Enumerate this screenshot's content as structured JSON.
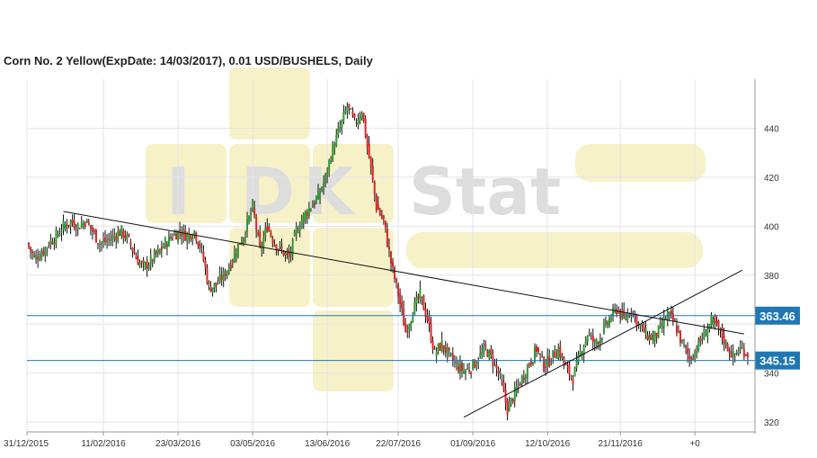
{
  "title": "Corn  No. 2 Yellow(ExpDate: 14/03/2017), 0.01 USD/BUSHELS, Daily",
  "watermark": {
    "text_left": "I",
    "text_mid": "DK",
    "text_right": "Stat",
    "color": "#f7f1c8",
    "letter_color": "#dddddd"
  },
  "colors": {
    "up": "#2e9c2e",
    "down": "#e02424",
    "level_line": "#1f77b4",
    "level_box": "#1f77b4",
    "trend": "#111111",
    "grid": "#e4e4e4"
  },
  "chart_data": {
    "type": "candlestick",
    "title": "Corn  No. 2 Yellow(ExpDate: 14/03/2017), 0.01 USD/BUSHELS, Daily",
    "x_tick_labels": [
      "31/12/2015",
      "11/02/2016",
      "23/03/2016",
      "03/05/2016",
      "13/06/2016",
      "22/07/2016",
      "01/09/2016",
      "12/10/2016",
      "21/11/2016",
      "+0"
    ],
    "x_tick_days": [
      0,
      42,
      83,
      124,
      165,
      204,
      245,
      286,
      326,
      367
    ],
    "y_ticks": [
      320,
      340,
      360,
      380,
      400,
      420,
      440
    ],
    "y_tick_labels": [
      "320",
      "340",
      "",
      "380",
      "400",
      "420",
      "440"
    ],
    "ylim": [
      316,
      460
    ],
    "xlim_days": [
      0,
      400
    ],
    "levels": [
      {
        "value": 363.46,
        "label": "363.46"
      },
      {
        "value": 345.15,
        "label": "345.15"
      }
    ],
    "trendlines": [
      {
        "from": {
          "day": 20,
          "value": 406
        },
        "to": {
          "day": 394,
          "value": 356
        }
      },
      {
        "from": {
          "day": 240,
          "value": 322
        },
        "to": {
          "day": 393,
          "value": 382
        }
      }
    ],
    "close_series": [
      {
        "day": 0,
        "close": 393
      },
      {
        "day": 4,
        "close": 387
      },
      {
        "day": 8,
        "close": 389
      },
      {
        "day": 12,
        "close": 393
      },
      {
        "day": 16,
        "close": 396
      },
      {
        "day": 20,
        "close": 400
      },
      {
        "day": 24,
        "close": 402
      },
      {
        "day": 28,
        "close": 400
      },
      {
        "day": 32,
        "close": 402
      },
      {
        "day": 36,
        "close": 398
      },
      {
        "day": 40,
        "close": 393
      },
      {
        "day": 44,
        "close": 394
      },
      {
        "day": 48,
        "close": 396
      },
      {
        "day": 52,
        "close": 398
      },
      {
        "day": 56,
        "close": 394
      },
      {
        "day": 60,
        "close": 387
      },
      {
        "day": 64,
        "close": 383
      },
      {
        "day": 68,
        "close": 386
      },
      {
        "day": 72,
        "close": 389
      },
      {
        "day": 76,
        "close": 393
      },
      {
        "day": 80,
        "close": 396
      },
      {
        "day": 84,
        "close": 398
      },
      {
        "day": 88,
        "close": 396
      },
      {
        "day": 92,
        "close": 398
      },
      {
        "day": 96,
        "close": 390
      },
      {
        "day": 100,
        "close": 375
      },
      {
        "day": 104,
        "close": 376
      },
      {
        "day": 108,
        "close": 380
      },
      {
        "day": 112,
        "close": 385
      },
      {
        "day": 116,
        "close": 392
      },
      {
        "day": 120,
        "close": 398
      },
      {
        "day": 124,
        "close": 408
      },
      {
        "day": 128,
        "close": 390
      },
      {
        "day": 132,
        "close": 400
      },
      {
        "day": 136,
        "close": 393
      },
      {
        "day": 140,
        "close": 390
      },
      {
        "day": 144,
        "close": 387
      },
      {
        "day": 148,
        "close": 398
      },
      {
        "day": 152,
        "close": 404
      },
      {
        "day": 156,
        "close": 408
      },
      {
        "day": 160,
        "close": 412
      },
      {
        "day": 164,
        "close": 420
      },
      {
        "day": 168,
        "close": 432
      },
      {
        "day": 172,
        "close": 440
      },
      {
        "day": 176,
        "close": 449
      },
      {
        "day": 180,
        "close": 442
      },
      {
        "day": 184,
        "close": 447
      },
      {
        "day": 188,
        "close": 428
      },
      {
        "day": 192,
        "close": 408
      },
      {
        "day": 196,
        "close": 402
      },
      {
        "day": 200,
        "close": 385
      },
      {
        "day": 204,
        "close": 372
      },
      {
        "day": 208,
        "close": 357
      },
      {
        "day": 212,
        "close": 365
      },
      {
        "day": 216,
        "close": 372
      },
      {
        "day": 220,
        "close": 362
      },
      {
        "day": 224,
        "close": 348
      },
      {
        "day": 228,
        "close": 352
      },
      {
        "day": 232,
        "close": 347
      },
      {
        "day": 236,
        "close": 343
      },
      {
        "day": 240,
        "close": 341
      },
      {
        "day": 244,
        "close": 342
      },
      {
        "day": 248,
        "close": 346
      },
      {
        "day": 252,
        "close": 350
      },
      {
        "day": 256,
        "close": 345
      },
      {
        "day": 260,
        "close": 338
      },
      {
        "day": 264,
        "close": 325
      },
      {
        "day": 268,
        "close": 332
      },
      {
        "day": 272,
        "close": 338
      },
      {
        "day": 276,
        "close": 344
      },
      {
        "day": 280,
        "close": 350
      },
      {
        "day": 284,
        "close": 343
      },
      {
        "day": 288,
        "close": 346
      },
      {
        "day": 292,
        "close": 350
      },
      {
        "day": 296,
        "close": 342
      },
      {
        "day": 300,
        "close": 338
      },
      {
        "day": 304,
        "close": 348
      },
      {
        "day": 308,
        "close": 356
      },
      {
        "day": 312,
        "close": 352
      },
      {
        "day": 316,
        "close": 356
      },
      {
        "day": 320,
        "close": 362
      },
      {
        "day": 324,
        "close": 366
      },
      {
        "day": 328,
        "close": 362
      },
      {
        "day": 332,
        "close": 366
      },
      {
        "day": 336,
        "close": 360
      },
      {
        "day": 340,
        "close": 356
      },
      {
        "day": 344,
        "close": 354
      },
      {
        "day": 348,
        "close": 358
      },
      {
        "day": 352,
        "close": 364
      },
      {
        "day": 356,
        "close": 360
      },
      {
        "day": 360,
        "close": 352
      },
      {
        "day": 364,
        "close": 346
      },
      {
        "day": 368,
        "close": 350
      },
      {
        "day": 372,
        "close": 356
      },
      {
        "day": 376,
        "close": 361
      },
      {
        "day": 380,
        "close": 358
      },
      {
        "day": 384,
        "close": 352
      },
      {
        "day": 388,
        "close": 347
      },
      {
        "day": 392,
        "close": 350
      },
      {
        "day": 396,
        "close": 348
      }
    ]
  }
}
